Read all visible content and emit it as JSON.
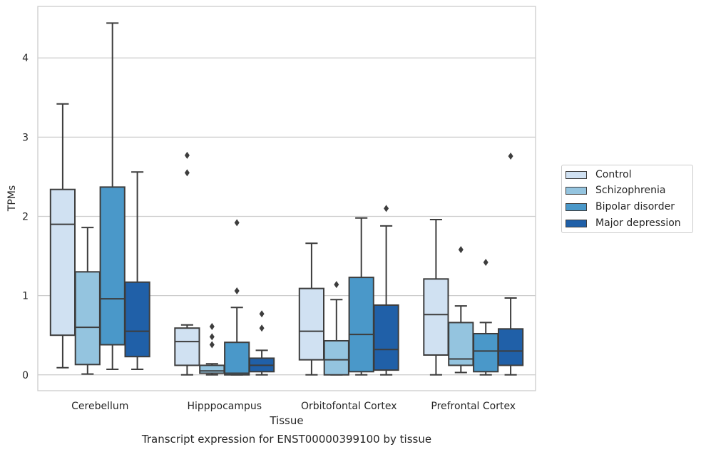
{
  "chart_data": {
    "type": "box",
    "title": "Transcript expression for ENST00000399100 by tissue",
    "xlabel": "Tissue",
    "ylabel": "TPMs",
    "ylim": [
      -0.2,
      4.65
    ],
    "yticks": [
      0,
      1,
      2,
      3,
      4
    ],
    "grid": "horizontal",
    "legend_position": "right",
    "categories": [
      "Cerebellum",
      "Hipppocampus",
      "Orbitofontal Cortex",
      "Prefrontal Cortex"
    ],
    "series": [
      {
        "name": "Control",
        "color": "#d0e1f2",
        "boxes": [
          {
            "whislo": 0.09,
            "q1": 0.5,
            "med": 1.9,
            "q3": 2.34,
            "whishi": 3.42,
            "fliers": []
          },
          {
            "whislo": 0.0,
            "q1": 0.12,
            "med": 0.42,
            "q3": 0.59,
            "whishi": 0.63,
            "fliers": [
              2.77,
              2.55
            ]
          },
          {
            "whislo": 0.0,
            "q1": 0.19,
            "med": 0.55,
            "q3": 1.09,
            "whishi": 1.66,
            "fliers": []
          },
          {
            "whislo": 0.0,
            "q1": 0.25,
            "med": 0.76,
            "q3": 1.21,
            "whishi": 1.96,
            "fliers": []
          }
        ]
      },
      {
        "name": "Schizophrenia",
        "color": "#94c4df",
        "boxes": [
          {
            "whislo": 0.01,
            "q1": 0.13,
            "med": 0.6,
            "q3": 1.3,
            "whishi": 1.86,
            "fliers": []
          },
          {
            "whislo": 0.0,
            "q1": 0.02,
            "med": 0.05,
            "q3": 0.12,
            "whishi": 0.14,
            "fliers": [
              0.61,
              0.48,
              0.38
            ]
          },
          {
            "whislo": 0.0,
            "q1": 0.0,
            "med": 0.19,
            "q3": 0.43,
            "whishi": 0.95,
            "fliers": [
              1.14
            ]
          },
          {
            "whislo": 0.03,
            "q1": 0.12,
            "med": 0.2,
            "q3": 0.66,
            "whishi": 0.87,
            "fliers": [
              1.58
            ]
          }
        ]
      },
      {
        "name": "Bipolar disorder",
        "color": "#4a98c9",
        "boxes": [
          {
            "whislo": 0.07,
            "q1": 0.38,
            "med": 0.96,
            "q3": 2.37,
            "whishi": 4.44,
            "fliers": []
          },
          {
            "whislo": 0.0,
            "q1": 0.0,
            "med": 0.02,
            "q3": 0.41,
            "whishi": 0.85,
            "fliers": [
              1.92,
              1.06
            ]
          },
          {
            "whislo": 0.0,
            "q1": 0.04,
            "med": 0.51,
            "q3": 1.23,
            "whishi": 1.98,
            "fliers": []
          },
          {
            "whislo": 0.0,
            "q1": 0.04,
            "med": 0.3,
            "q3": 0.52,
            "whishi": 0.66,
            "fliers": [
              1.42
            ]
          }
        ]
      },
      {
        "name": "Major depression",
        "color": "#2060a8",
        "boxes": [
          {
            "whislo": 0.07,
            "q1": 0.23,
            "med": 0.55,
            "q3": 1.17,
            "whishi": 2.56,
            "fliers": []
          },
          {
            "whislo": 0.0,
            "q1": 0.04,
            "med": 0.12,
            "q3": 0.21,
            "whishi": 0.31,
            "fliers": [
              0.77,
              0.59
            ]
          },
          {
            "whislo": 0.0,
            "q1": 0.06,
            "med": 0.32,
            "q3": 0.88,
            "whishi": 1.88,
            "fliers": [
              2.1
            ]
          },
          {
            "whislo": 0.0,
            "q1": 0.12,
            "med": 0.3,
            "q3": 0.58,
            "whishi": 0.97,
            "fliers": [
              2.76
            ]
          }
        ]
      }
    ]
  }
}
